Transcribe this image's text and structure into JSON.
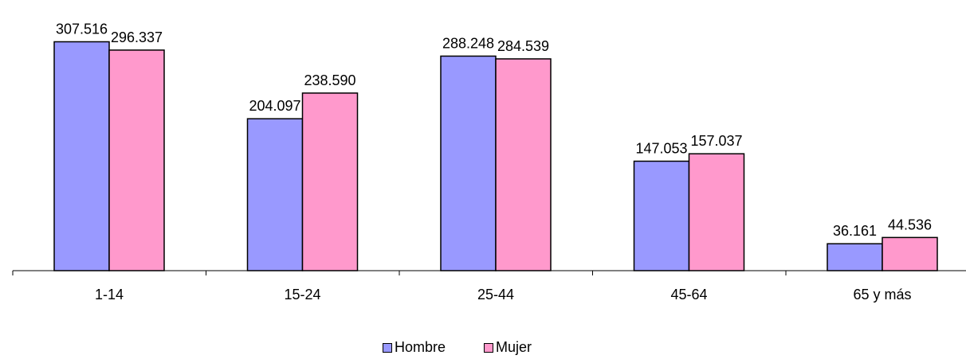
{
  "chart_data": {
    "type": "bar",
    "categories": [
      "1-14",
      "15-24",
      "25-44",
      "45-64",
      "65 y más"
    ],
    "series": [
      {
        "name": "Hombre",
        "color": "#9999FF",
        "values": [
          307516,
          204097,
          288248,
          147053,
          36161
        ],
        "labels": [
          "307.516",
          "204.097",
          "288.248",
          "147.053",
          "36.161"
        ]
      },
      {
        "name": "Mujer",
        "color": "#FF99CC",
        "values": [
          296337,
          238590,
          284539,
          157037,
          44536
        ],
        "labels": [
          "296.337",
          "238.590",
          "284.539",
          "157.037",
          "44.536"
        ]
      }
    ],
    "title": "",
    "xlabel": "",
    "ylabel": "",
    "ylim": [
      0,
      350000
    ],
    "grid": false,
    "legend_position": "bottom"
  }
}
